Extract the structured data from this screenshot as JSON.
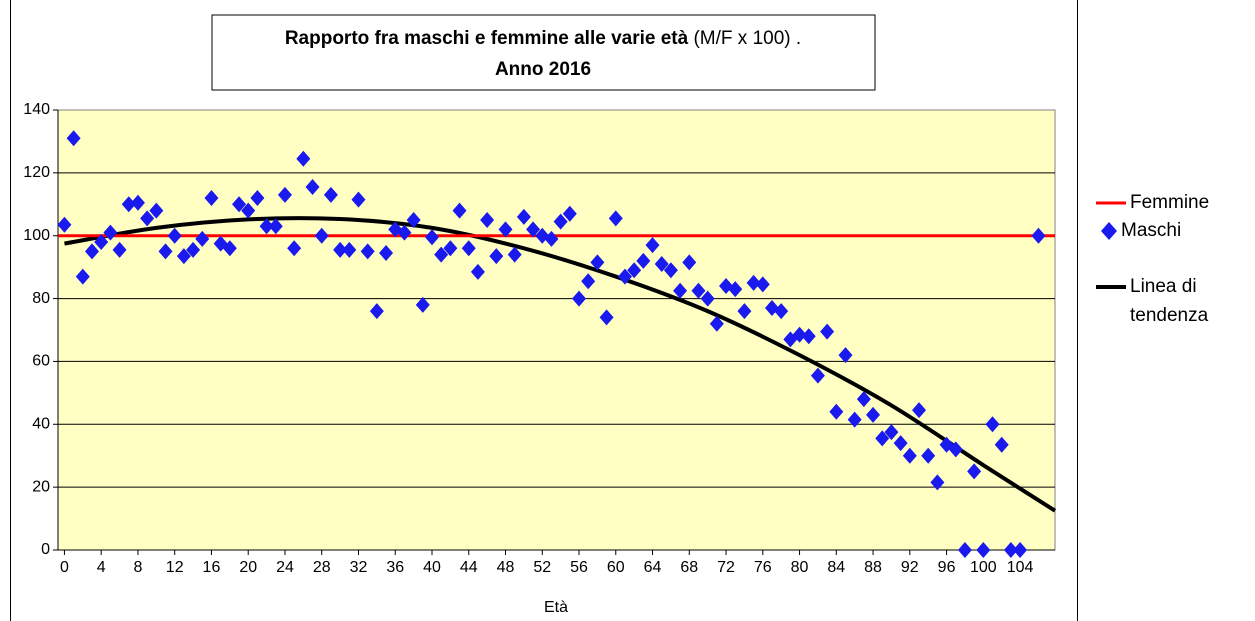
{
  "chart_data": {
    "type": "scatter",
    "title": "Rapporto fra maschi e femmine alle varie età",
    "title_note": "(M/F x 100) .",
    "subtitle": "Anno 2016",
    "x_label": "Età",
    "xlim": [
      -0.7,
      107.8
    ],
    "xticks": [
      0,
      4,
      8,
      12,
      16,
      20,
      24,
      28,
      32,
      36,
      40,
      44,
      48,
      52,
      56,
      60,
      64,
      68,
      72,
      76,
      80,
      84,
      88,
      92,
      96,
      100,
      104
    ],
    "ylim": [
      0,
      140
    ],
    "yticks": [
      0,
      20,
      40,
      60,
      80,
      100,
      120,
      140
    ],
    "grid": true,
    "plot_background": "#ffffc4",
    "series": [
      {
        "name": "Femmine",
        "type": "hline",
        "color": "#ff0000",
        "value": 100
      },
      {
        "name": "Maschi",
        "type": "scatter",
        "color": "#1a1aee",
        "x": [
          0,
          1,
          2,
          3,
          4,
          5,
          6,
          7,
          8,
          9,
          10,
          11,
          12,
          13,
          14,
          15,
          16,
          17,
          18,
          19,
          20,
          21,
          22,
          23,
          24,
          25,
          26,
          27,
          28,
          29,
          30,
          31,
          32,
          33,
          34,
          35,
          36,
          37,
          38,
          39,
          40,
          41,
          42,
          43,
          44,
          45,
          46,
          47,
          48,
          49,
          50,
          51,
          52,
          53,
          54,
          55,
          56,
          57,
          58,
          59,
          60,
          61,
          62,
          63,
          64,
          65,
          66,
          67,
          68,
          69,
          70,
          71,
          72,
          73,
          74,
          75,
          76,
          77,
          78,
          79,
          80,
          81,
          82,
          83,
          84,
          85,
          86,
          87,
          88,
          89,
          90,
          91,
          92,
          93,
          94,
          95,
          96,
          97,
          98,
          99,
          100,
          101,
          102,
          103,
          104,
          106
        ],
        "values": [
          103.5,
          131,
          87,
          95,
          98,
          101,
          95.5,
          110,
          110.5,
          105.5,
          108,
          95,
          100,
          93.5,
          95.5,
          99,
          112,
          97.5,
          96,
          110,
          108,
          112,
          103,
          103,
          113,
          96,
          124.5,
          115.5,
          100,
          113,
          95.5,
          95.5,
          111.5,
          95,
          76,
          94.5,
          102,
          101,
          105,
          78,
          99.5,
          94,
          96,
          108,
          96,
          88.5,
          105,
          93.5,
          102,
          94,
          106,
          102,
          100,
          99,
          104.5,
          107,
          80,
          85.5,
          91.5,
          74,
          105.5,
          87,
          89,
          92,
          97,
          91,
          89,
          82.5,
          91.5,
          82.5,
          80,
          72,
          84,
          83,
          76,
          85,
          84.5,
          77,
          76,
          67,
          68.5,
          68,
          55.5,
          69.5,
          44,
          62,
          41.5,
          48,
          43,
          35.5,
          37.5,
          34,
          30,
          44.5,
          30,
          21.5,
          33.5,
          32,
          0,
          25,
          0,
          40,
          33.5,
          0,
          0,
          100
        ]
      },
      {
        "name": "Linea di tendenza",
        "type": "line",
        "color": "#000000",
        "x": [
          0,
          10,
          20,
          30,
          40,
          50,
          60,
          70,
          80,
          90,
          100,
          107.8
        ],
        "values": [
          97.5,
          102.5,
          105.2,
          105.3,
          102.5,
          96,
          87,
          76,
          62,
          46,
          27,
          12.5
        ]
      }
    ]
  }
}
